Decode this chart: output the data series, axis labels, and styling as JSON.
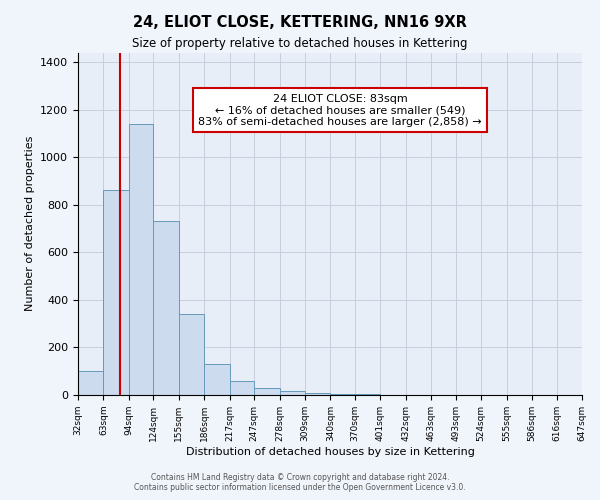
{
  "title": "24, ELIOT CLOSE, KETTERING, NN16 9XR",
  "subtitle": "Size of property relative to detached houses in Kettering",
  "xlabel": "Distribution of detached houses by size in Kettering",
  "ylabel": "Number of detached properties",
  "bin_edges": [
    32,
    63,
    94,
    124,
    155,
    186,
    217,
    247,
    278,
    309,
    340,
    370,
    401,
    432,
    463,
    493,
    524,
    555,
    586,
    616,
    647
  ],
  "bin_counts": [
    100,
    860,
    1140,
    730,
    340,
    130,
    60,
    30,
    15,
    10,
    5,
    3,
    2,
    0,
    0,
    0,
    0,
    0,
    0,
    0
  ],
  "property_size": 83,
  "property_line_color": "#cc0000",
  "bar_facecolor": "#ccdcee",
  "bar_edgecolor": "#6699bb",
  "annotation_text": "24 ELIOT CLOSE: 83sqm\n← 16% of detached houses are smaller (549)\n83% of semi-detached houses are larger (2,858) →",
  "annotation_box_edgecolor": "#cc0000",
  "annotation_box_facecolor": "#ffffff",
  "ylim": [
    0,
    1440
  ],
  "yticks": [
    0,
    200,
    400,
    600,
    800,
    1000,
    1200,
    1400
  ],
  "xlim": [
    32,
    647
  ],
  "fig_facecolor": "#f0f4fb",
  "ax_facecolor": "#e8eef8",
  "grid_color": "#c8cedd",
  "title_fontsize": 10.5,
  "subtitle_fontsize": 8.5,
  "footer_line1": "Contains HM Land Registry data © Crown copyright and database right 2024.",
  "footer_line2": "Contains public sector information licensed under the Open Government Licence v3.0."
}
